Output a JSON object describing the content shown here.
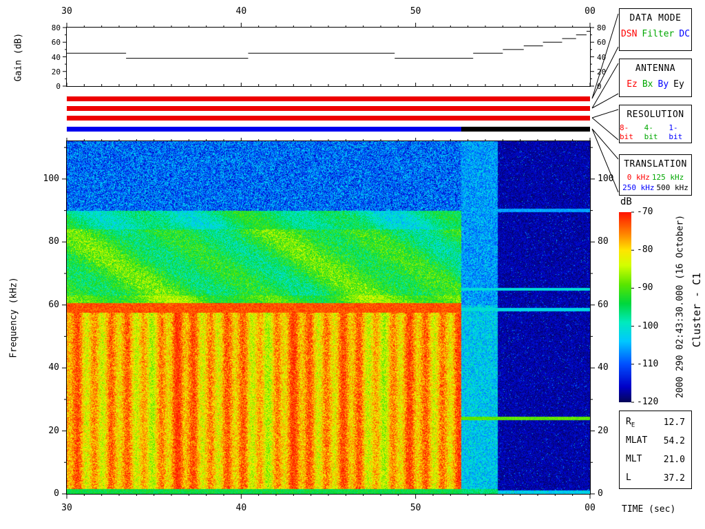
{
  "labels": {
    "time_axis": "TIME (sec)",
    "gain_axis": "Gain (dB)",
    "freq_axis": "Frequency (kHz)",
    "colorbar": "dB",
    "timestamp": "2000 290 02:43:30.000 (16 October)",
    "spacecraft": "Cluster - C1"
  },
  "panels": {
    "data_mode": {
      "title": "DATA MODE",
      "items": [
        {
          "label": "DSN",
          "color": "#ff0000"
        },
        {
          "label": "Filter",
          "color": "#00a800"
        },
        {
          "label": "DC",
          "color": "#0000ff"
        }
      ]
    },
    "antenna": {
      "title": "ANTENNA",
      "items": [
        {
          "label": "Ez",
          "color": "#ff0000"
        },
        {
          "label": "Bx",
          "color": "#00a800"
        },
        {
          "label": "By",
          "color": "#0000ff"
        },
        {
          "label": "Ey",
          "color": "#000000"
        }
      ]
    },
    "resolution": {
      "title": "RESOLUTION",
      "items": [
        {
          "label": "8-bit",
          "color": "#ff0000"
        },
        {
          "label": "4-bit",
          "color": "#00a800"
        },
        {
          "label": "1-bit",
          "color": "#0000ff"
        }
      ]
    },
    "translation": {
      "title": "TRANSLATION",
      "items": [
        {
          "label": "0 kHz",
          "color": "#ff0000"
        },
        {
          "label": "125 kHz",
          "color": "#00a800"
        },
        {
          "label": "250 kHz",
          "color": "#0000ff"
        },
        {
          "label": "500 kHz",
          "color": "#000000"
        }
      ]
    }
  },
  "ephemeris": {
    "rows": [
      {
        "label": "R",
        "sub": "E",
        "value": "12.7"
      },
      {
        "label": "MLAT",
        "sub": "",
        "value": "54.2"
      },
      {
        "label": "MLT",
        "sub": "",
        "value": "21.0"
      },
      {
        "label": "L",
        "sub": "",
        "value": "37.2"
      }
    ]
  },
  "chart_data": [
    {
      "type": "line",
      "name": "agc-gain",
      "ylabel": "Gain (dB)",
      "xlim": [
        30,
        60
      ],
      "ylim": [
        0,
        80
      ],
      "x_ticks": [
        {
          "v": 30,
          "label": "30"
        },
        {
          "v": 40,
          "label": "40"
        },
        {
          "v": 50,
          "label": "50"
        },
        {
          "v": 60,
          "label": "00"
        }
      ],
      "y_ticks": [
        0,
        20,
        40,
        60,
        80
      ],
      "steps": [
        [
          30,
          33.4,
          45
        ],
        [
          33.4,
          40.4,
          38
        ],
        [
          40.4,
          48.8,
          45
        ],
        [
          48.8,
          53.3,
          38
        ],
        [
          53.3,
          55,
          45
        ],
        [
          55,
          56.2,
          50
        ],
        [
          56.2,
          57.3,
          55
        ],
        [
          57.3,
          58.4,
          60
        ],
        [
          58.4,
          59.2,
          65
        ],
        [
          59.2,
          59.8,
          70
        ],
        [
          59.8,
          60,
          75
        ]
      ]
    },
    {
      "type": "bars",
      "name": "status-bars",
      "xlim": [
        30,
        60
      ],
      "bars": [
        {
          "name": "data-mode-bar",
          "segments": [
            {
              "t": [
                30,
                60
              ],
              "color": "#ee0000",
              "label": "DSN"
            }
          ]
        },
        {
          "name": "antenna-bar",
          "segments": [
            {
              "t": [
                30,
                60
              ],
              "color": "#ee0000",
              "label": "Ez"
            }
          ]
        },
        {
          "name": "resolution-bar",
          "segments": [
            {
              "t": [
                30,
                60
              ],
              "color": "#ee0000",
              "label": "8-bit"
            }
          ]
        },
        {
          "name": "translation-bar",
          "segments": [
            {
              "t": [
                30,
                52.6
              ],
              "color": "#0000ee",
              "label": "250 kHz"
            },
            {
              "t": [
                52.6,
                60
              ],
              "color": "#000000",
              "label": "500 kHz"
            }
          ]
        }
      ]
    },
    {
      "type": "heatmap",
      "name": "wbd-spectrogram",
      "title": "Cluster C1 WBD spectrogram",
      "xlabel": "TIME (sec)",
      "ylabel": "Frequency (kHz)",
      "xlim": [
        30,
        60
      ],
      "ylim": [
        0,
        112
      ],
      "zlim_db": [
        -120,
        -70
      ],
      "x_ticks": [
        {
          "v": 30,
          "label": "30"
        },
        {
          "v": 40,
          "label": "40"
        },
        {
          "v": 50,
          "label": "50"
        },
        {
          "v": 60,
          "label": "00"
        }
      ],
      "y_ticks": [
        0,
        20,
        40,
        60,
        80,
        100
      ],
      "colorbar_ticks": [
        -70,
        -80,
        -90,
        -100,
        -110,
        -120
      ],
      "colormap_stops": [
        [
          0,
          5,
          5,
          90
        ],
        [
          0.08,
          0,
          0,
          200
        ],
        [
          0.2,
          0,
          80,
          255
        ],
        [
          0.32,
          0,
          200,
          255
        ],
        [
          0.42,
          0,
          235,
          190
        ],
        [
          0.52,
          0,
          215,
          60
        ],
        [
          0.62,
          90,
          230,
          0
        ],
        [
          0.72,
          210,
          255,
          0
        ],
        [
          0.8,
          255,
          230,
          0
        ],
        [
          0.88,
          255,
          140,
          0
        ],
        [
          1,
          255,
          20,
          0
        ]
      ],
      "regions": [
        {
          "name": "burst",
          "t": [
            30,
            52.6
          ],
          "bands": [
            {
              "f": [
                0,
                1.5
              ],
              "db": -94,
              "noise": 3
            },
            {
              "f": [
                1.5,
                57.5
              ],
              "db": -78,
              "noise": 6,
              "stripes": {
                "period_s": 0.95,
                "amp_db": 4
              }
            },
            {
              "f": [
                57.5,
                60.5
              ],
              "db": -73,
              "noise": 3
            },
            {
              "f": [
                60.5,
                63
              ],
              "db": -90,
              "noise": 5,
              "texture": true
            },
            {
              "f": [
                63,
                84
              ],
              "db": -93,
              "noise": 6,
              "texture": true
            },
            {
              "f": [
                84,
                90
              ],
              "db": -97,
              "noise": 5,
              "texture": true
            },
            {
              "f": [
                90,
                112
              ],
              "db": -109,
              "noise": 8
            }
          ]
        },
        {
          "name": "transition",
          "t": [
            52.6,
            54.7
          ],
          "bands": [
            {
              "f": [
                0,
                1.5
              ],
              "db": -96,
              "noise": 3
            },
            {
              "f": [
                1.5,
                60
              ],
              "db": -103,
              "noise": 6
            },
            {
              "f": [
                60,
                112
              ],
              "db": -106,
              "noise": 6
            }
          ]
        },
        {
          "name": "quiet",
          "t": [
            54.7,
            60.01
          ],
          "bands": [
            {
              "f": [
                0,
                1.2
              ],
              "db": -103,
              "noise": 3
            },
            {
              "f": [
                1.2,
                112
              ],
              "db": -117,
              "noise": 3
            }
          ],
          "speckle": {
            "prob": 0.02,
            "boost_db": 10
          }
        }
      ],
      "hlines": [
        {
          "f": 24,
          "db": -89,
          "hw": 0.6,
          "t": [
            52.6,
            60
          ]
        },
        {
          "f": 58.5,
          "db": -102,
          "hw": 0.5,
          "t": [
            52.6,
            60
          ]
        },
        {
          "f": 65,
          "db": -101,
          "hw": 0.5,
          "t": [
            52.6,
            60
          ]
        },
        {
          "f": 90,
          "db": -106,
          "hw": 0.5,
          "t": [
            54.7,
            60
          ]
        }
      ]
    }
  ]
}
